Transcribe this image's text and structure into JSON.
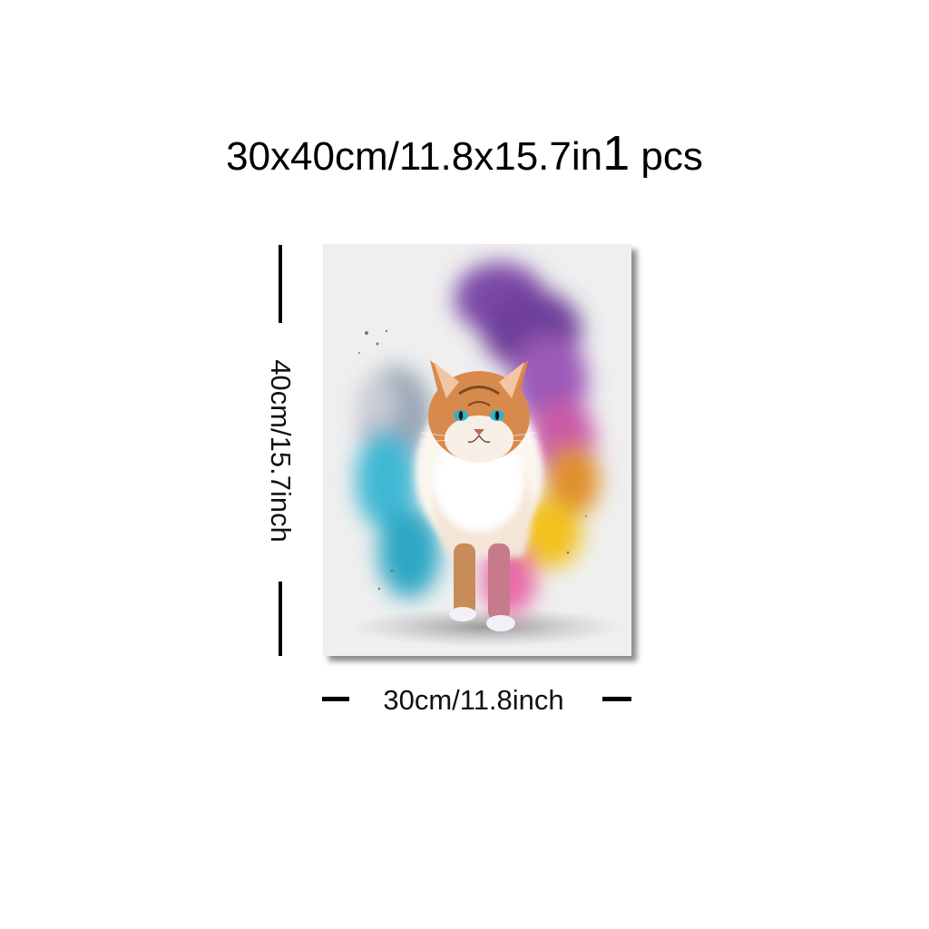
{
  "headline": {
    "size_text": "30x40cm/11.8x15.7in",
    "quantity": "1",
    "unit": "pcs"
  },
  "dimensions": {
    "height_label": "40cm/15.7inch",
    "width_label": "30cm/11.8inch"
  },
  "artwork": {
    "subject": "cat-icon",
    "colors": [
      "#7d4aa8",
      "#3fb8d4",
      "#f2c21b",
      "#e86aa8",
      "#d0772a"
    ]
  }
}
